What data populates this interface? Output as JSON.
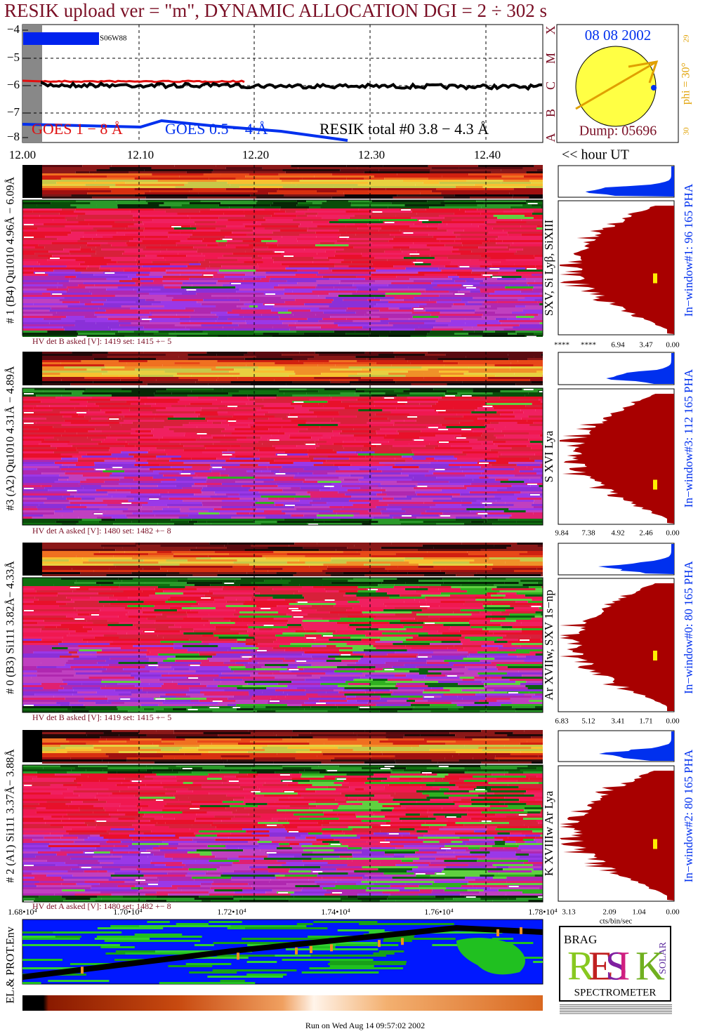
{
  "header": {
    "title": "RESIK upload ver = \"m\", DYNAMIC ALLOCATION  DGI =   2 ÷ 302 s"
  },
  "goes": {
    "y_labels": [
      "−4",
      "−5",
      "−6",
      "−7",
      "−8"
    ],
    "classes": [
      "X",
      "M",
      "C",
      "B",
      "A"
    ],
    "region": "S06W88",
    "legend": [
      "GOES 1 − 8 Å",
      "GOES 0.5 − 4 Å",
      "RESIK total #0  3.8 − 4.3 Å"
    ],
    "x_labels": [
      "12.00",
      "12.10",
      "12.20",
      "12.30",
      "12.40"
    ],
    "x_unit": "<< hour UT"
  },
  "sun": {
    "date": "08 08 2002",
    "dump": "Dump: 05696",
    "phi": "phi = 30°",
    "lat_top": "29",
    "lat_bottom": "30"
  },
  "panels": [
    {
      "label": "# 1 (B4) Qu1010 4.96Å − 6.09Å",
      "lines": "SXV, Si Lyβ, SiXIII",
      "window": "In−window#1:   96 165  PHA",
      "hv": "HV det B asked [V]:  1419  set:  1415  +−    5",
      "pha_ticks": [
        "****",
        "****",
        "6.94",
        "3.47",
        "0.00"
      ]
    },
    {
      "label": "#3 (A2) Qu1010  4.31Å − 4.89Å",
      "lines": "S XVI Lya",
      "window": "In−window#3:  112 165  PHA",
      "hv": "HV det A asked [V]:  1480  set:  1482  +−    8",
      "pha_ticks": [
        "9.84",
        "7.38",
        "4.92",
        "2.46",
        "0.00"
      ]
    },
    {
      "label": "# 0 (B3) Si111  3.82Å− 4.33Å",
      "lines": "Ar XVIIw,  SXV 1s−np",
      "window": "In−window#0:   80 165  PHA",
      "hv": "HV det B asked [V]:  1419  set:  1415  +−    5",
      "pha_ticks": [
        "6.83",
        "5.12",
        "3.41",
        "1.71",
        "0.00"
      ]
    },
    {
      "label": "# 2 (A1) Si111  3.37Å− 3.88Å",
      "lines": "K XVIIIw  Ar Lya",
      "window": "In−window#2:   80 165  PHA",
      "hv": "HV det A asked [V]:  1480  set:  1482  +−    8",
      "pha_ticks": [
        "3.13",
        "2.09",
        "1.04",
        "0.00"
      ]
    }
  ],
  "pha_unit": "cts/bin/sec",
  "orbit": {
    "label": "EL.& PROT.Env",
    "x_labels": [
      "1.68•10⁴",
      "1.70•10⁴",
      "1.72•10⁴",
      "1.74•10⁴",
      "1.76•10⁴",
      "1.78•10⁴"
    ]
  },
  "logo": {
    "top": "BRAG",
    "letters": [
      "R",
      "E",
      "S",
      "I",
      "K"
    ],
    "side": "SOLAR",
    "bottom": "SPECTROMETER"
  },
  "footer": "Run on Wed Aug 14 09:57:02 2002"
}
